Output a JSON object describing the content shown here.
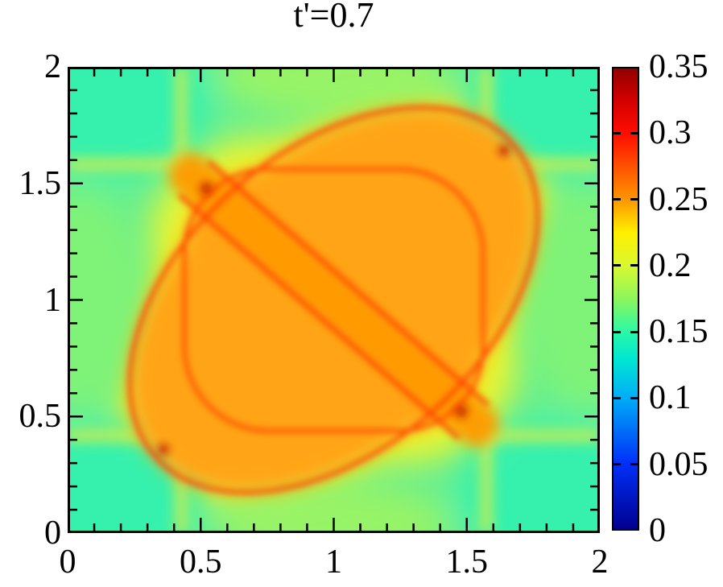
{
  "title": "t'=0.7",
  "chart_data": {
    "type": "heatmap",
    "title": "t'=0.7",
    "xlabel": "",
    "ylabel": "",
    "x_range": [
      0,
      2
    ],
    "y_range": [
      0,
      2
    ],
    "major_tick_step": 0.5,
    "minor_tick_step": 0.1,
    "x_tick_labels": [
      "0",
      "0.5",
      "1",
      "1.5",
      "2"
    ],
    "y_tick_labels": [
      "0",
      "0.5",
      "1",
      "1.5",
      "2"
    ],
    "grid": false,
    "legend": "none",
    "colorbar": {
      "position": "right",
      "range": [
        0,
        0.35
      ],
      "tick_values": [
        0,
        0.05,
        0.1,
        0.15,
        0.2,
        0.25,
        0.3,
        0.35
      ],
      "tick_labels": [
        "0",
        "0.05",
        "0.1",
        "0.15",
        "0.2",
        "0.25",
        "0.3",
        "0.35"
      ],
      "gradient_stops": [
        {
          "value": 0.0,
          "color": "#000090"
        },
        {
          "value": 0.05,
          "color": "#0030F8"
        },
        {
          "value": 0.1,
          "color": "#00AEF8"
        },
        {
          "value": 0.13,
          "color": "#00E8D0"
        },
        {
          "value": 0.15,
          "color": "#2CF8A8"
        },
        {
          "value": 0.175,
          "color": "#8CF65C"
        },
        {
          "value": 0.2,
          "color": "#D8F830"
        },
        {
          "value": 0.225,
          "color": "#FFF000"
        },
        {
          "value": 0.25,
          "color": "#FF9800"
        },
        {
          "value": 0.275,
          "color": "#FF5200"
        },
        {
          "value": 0.3,
          "color": "#FF0E00"
        },
        {
          "value": 0.325,
          "color": "#D40000"
        },
        {
          "value": 0.35,
          "color": "#920000"
        }
      ]
    },
    "field": {
      "description": "Smooth intensity map over [0,2]x[0,2]. Green/teal minima in the four corners, yellow transition zones, and a large orange central structure bounded by thin red contour arcs: a rounded-square contour (sides near x=0.45, x=1.55, y=0.45, y=1.55, sides extending as fainter yellow lines to the plot edges) overlapped by a lens-shaped contour along the main diagonal (tips near (0.35,0.35) and (1.65,1.65)), plus a straight band along the anti-diagonal from ~(0.5,1.5) to ~(1.5,0.5) with red edges. Darkest red spots where contours cross.",
      "approx_values": {
        "corner_pockets": 0.14,
        "edge_mid_regions": 0.17,
        "yellow_transition": 0.21,
        "central_lobes": 0.25,
        "antidiagonal_band_interior": 0.26,
        "contour_arcs": 0.29,
        "arc_crossings": 0.31
      },
      "features": [
        {
          "name": "teal-corner-pockets",
          "value": 0.14,
          "centers": [
            [
              0.15,
              1.85
            ],
            [
              1.85,
              1.85
            ],
            [
              0.15,
              0.15
            ],
            [
              1.85,
              0.15
            ]
          ]
        },
        {
          "name": "green-edge-regions",
          "value": 0.17,
          "centers": [
            [
              0.05,
              1.0
            ],
            [
              1.95,
              1.0
            ],
            [
              1.0,
              1.95
            ],
            [
              1.0,
              0.05
            ]
          ]
        },
        {
          "name": "rounded-square-contour",
          "value": 0.29,
          "description": "red arcs near x=0.45, x=1.55, y=0.45, y=1.55 with rounded corners"
        },
        {
          "name": "diagonal-lens-contour",
          "value": 0.29,
          "description": "red elliptical arc along main diagonal, tips near (0.35,0.35) and (1.65,1.65)"
        },
        {
          "name": "antidiagonal-band",
          "value": 0.26,
          "description": "straight band with red edges from ~(0.5,1.5) to ~(1.5,0.5)"
        },
        {
          "name": "crossing-hotspots",
          "value": 0.31,
          "points": [
            [
              0.52,
              1.48
            ],
            [
              1.48,
              0.52
            ],
            [
              0.36,
              0.36
            ],
            [
              1.64,
              1.64
            ]
          ]
        }
      ]
    }
  }
}
